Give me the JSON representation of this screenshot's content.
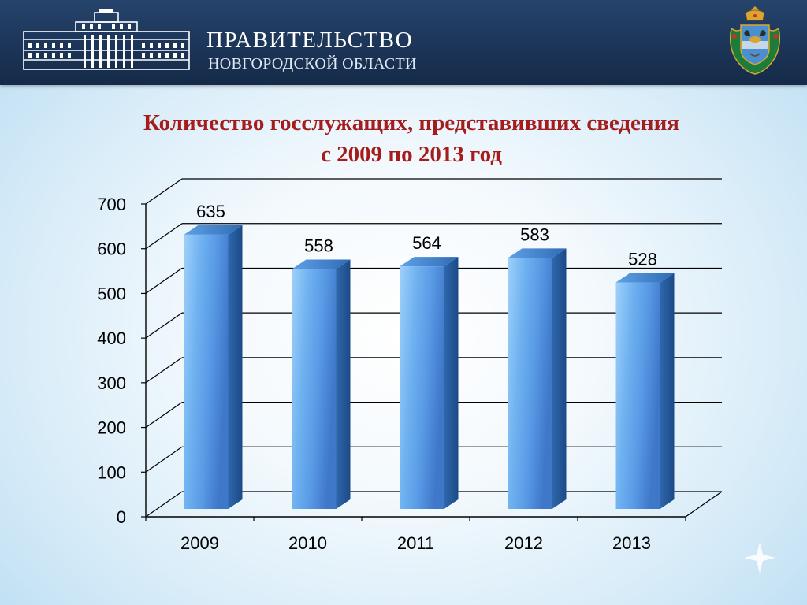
{
  "header": {
    "title": "ПРАВИТЕЛЬСТВО",
    "subtitle": "НОВГОРОДСКОЙ ОБЛАСТИ",
    "icons": [
      "government-building-icon",
      "coat-of-arms-icon"
    ]
  },
  "slide": {
    "title_line1": "Количество госслужащих, представивших сведения",
    "title_line2": "с 2009 по 2013 год"
  },
  "colors": {
    "header_bg": "#1c3558",
    "title_red": "#a51c1c",
    "bar_front": "#6fb2f0",
    "bar_side": "#2a5c9a",
    "bar_top": "#4a8fd6",
    "grid": "#000000"
  },
  "chart_data": {
    "type": "bar",
    "categories": [
      "2009",
      "2010",
      "2011",
      "2012",
      "2013"
    ],
    "values": [
      635,
      558,
      564,
      583,
      528
    ],
    "data_labels": [
      "635",
      "558",
      "564",
      "583",
      "528"
    ],
    "y_ticks": [
      "0",
      "100",
      "200",
      "300",
      "400",
      "500",
      "600",
      "700"
    ],
    "ylim": [
      0,
      700
    ],
    "grid": true,
    "legend": "none",
    "style": "3d-column"
  }
}
